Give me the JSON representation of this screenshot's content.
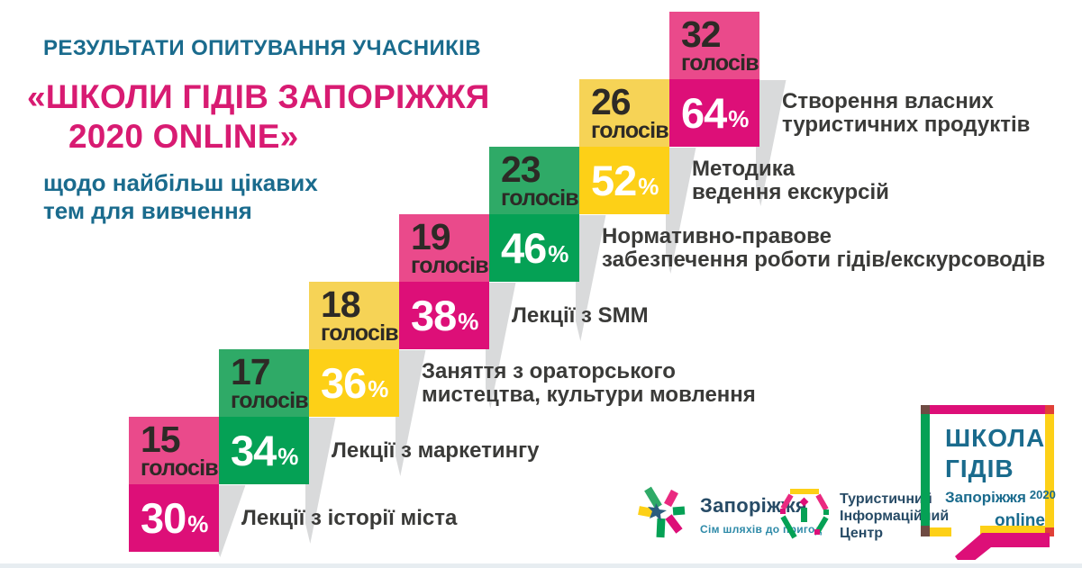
{
  "header": {
    "line1": "РЕЗУЛЬТАТИ ОПИТУВАННЯ УЧАСНИКІВ",
    "line2": "«ШКОЛИ ГІДІВ ЗАПОРІЖЖЯ",
    "line3": "2020 ONLINE»",
    "line4": "щодо найбільш цікавих",
    "line5": "тем для вивчення"
  },
  "chart_data": {
    "type": "bar",
    "title": "Результати опитування учасників «Школи гідів Запоріжжя 2020 online» щодо найбільш цікавих тем для вивчення",
    "layout": "ascending staircase, left-to-right; each column = topic with votes block on top and percent block below",
    "categories": [
      "Лекції з історії міста",
      "Лекції з маркетингу",
      "Заняття з ораторського мистецтва, культури мовлення",
      "Лекції з SMM",
      "Нормативно-правове забезпечення роботи гідів/екскурсоводів",
      "Методика ведення екскурсій",
      "Створення власних туристичних продуктів"
    ],
    "series": [
      {
        "name": "голосів",
        "values": [
          15,
          17,
          18,
          19,
          23,
          26,
          32
        ]
      },
      {
        "name": "відсотки",
        "values": [
          30,
          34,
          36,
          38,
          46,
          52,
          64
        ]
      }
    ]
  },
  "steps": [
    {
      "votes": "15",
      "votes_word": "голосів",
      "percent": "30",
      "percent_sign": "%",
      "color": "pink",
      "label_lines": [
        "Лекції з історії міста"
      ]
    },
    {
      "votes": "17",
      "votes_word": "голосів",
      "percent": "34",
      "percent_sign": "%",
      "color": "green",
      "label_lines": [
        "Лекції з маркетингу"
      ]
    },
    {
      "votes": "18",
      "votes_word": "голосів",
      "percent": "36",
      "percent_sign": "%",
      "color": "yellow",
      "label_lines": [
        "Заняття з ораторського",
        "мистецтва, культури мовлення"
      ]
    },
    {
      "votes": "19",
      "votes_word": "голосів",
      "percent": "38",
      "percent_sign": "%",
      "color": "pink",
      "label_lines": [
        "Лекції з SMM"
      ]
    },
    {
      "votes": "23",
      "votes_word": "голосів",
      "percent": "46",
      "percent_sign": "%",
      "color": "green",
      "label_lines": [
        "Нормативно-правове",
        "забезпечення роботи гідів/екскурсоводів"
      ]
    },
    {
      "votes": "26",
      "votes_word": "голосів",
      "percent": "52",
      "percent_sign": "%",
      "color": "yellow",
      "label_lines": [
        "Методика",
        "ведення екскурсій"
      ]
    },
    {
      "votes": "32",
      "votes_word": "голосів",
      "percent": "64",
      "percent_sign": "%",
      "color": "pink",
      "label_lines": [
        "Створення власних",
        "туристичних продуктів"
      ]
    }
  ],
  "footer": {
    "zaporizhzhia_logo": {
      "title": "Запоріжжя",
      "tagline": "Сім шляхів до пригод"
    },
    "tic_logo": {
      "line1": "Туристичний",
      "line2": "Інформаційний",
      "line3": "Центр"
    },
    "school_badge": {
      "line1": "ШКОЛА",
      "line2": "ГІДІВ",
      "city": "Запоріжжя",
      "year": "2020",
      "online": "online"
    }
  },
  "colors": {
    "pink": "#dd0f78",
    "pink_light": "#ea4a8b",
    "green": "#05a155",
    "green_light": "#2faa67",
    "yellow": "#fdd017",
    "yellow_light": "#f6d356",
    "teal": "#1a6b8d",
    "teal2": "#2e8aa8",
    "header_pink": "#d81b72",
    "dark": "#2d2a26",
    "label": "#3a3a38",
    "shadow": "#d9dadb",
    "navy": "#274b66",
    "red": "#e04038",
    "maroon": "#6f4b43",
    "strip": "#e7edf1"
  }
}
